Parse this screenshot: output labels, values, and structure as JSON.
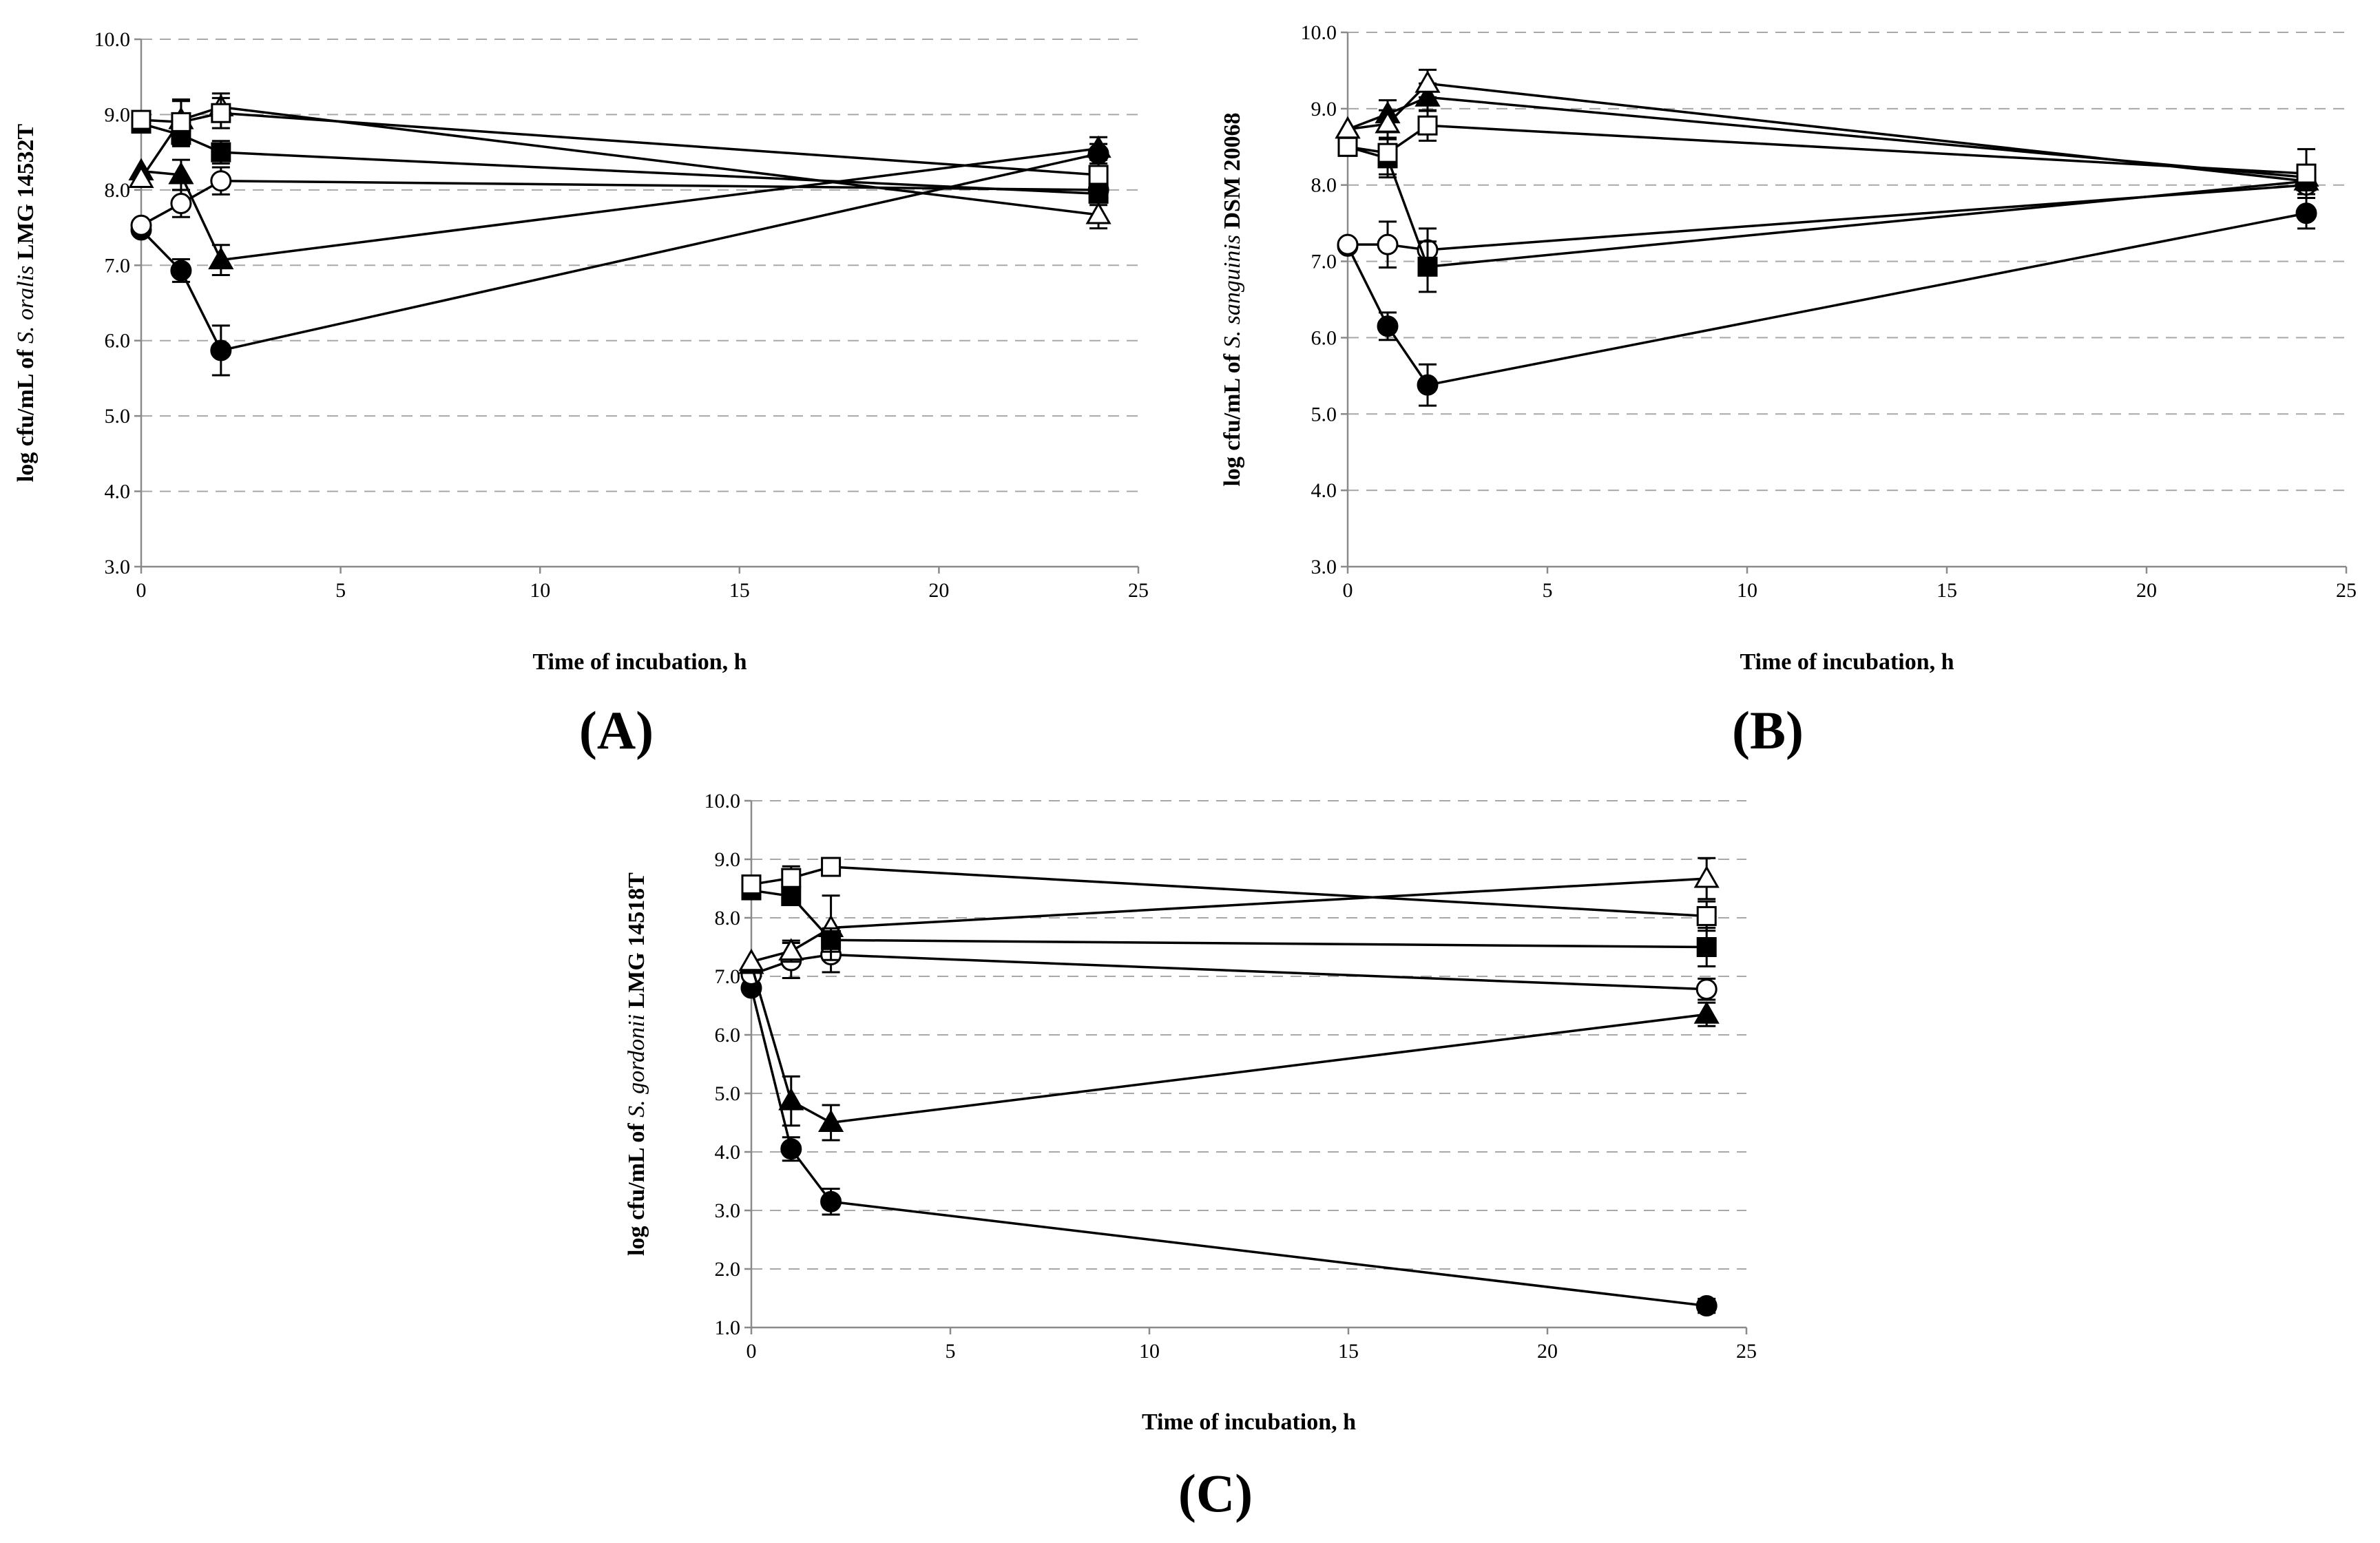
{
  "chart_data": [
    {
      "type": "line",
      "panel": "(A)",
      "ylabel_parts": [
        "log cfu/mL of ",
        "S. oralis",
        " LMG 14532T"
      ],
      "xlabel": "Time of incubation, h",
      "xlim": [
        0,
        25
      ],
      "ylim": [
        3,
        10
      ],
      "x_ticks": [
        "0",
        "5",
        "10",
        "15",
        "20",
        "25"
      ],
      "y_ticks": [
        "3.0",
        "4.0",
        "5.0",
        "6.0",
        "7.0",
        "8.0",
        "9.0",
        "10.0"
      ],
      "grid": true,
      "x": [
        0,
        1,
        2,
        24
      ],
      "series": [
        {
          "marker": "circle-filled",
          "values": [
            7.47,
            6.93,
            5.87,
            8.48
          ],
          "errors": [
            0.05,
            0.15,
            0.33,
            0.13
          ]
        },
        {
          "marker": "circle-open",
          "values": [
            7.53,
            7.82,
            8.12,
            8.0
          ],
          "errors": [
            0.05,
            0.18,
            0.18,
            0.1
          ]
        },
        {
          "marker": "triangle-filled",
          "values": [
            8.25,
            8.2,
            7.07,
            8.55
          ],
          "errors": [
            0.05,
            0.2,
            0.2,
            0.15
          ]
        },
        {
          "marker": "triangle-open",
          "values": [
            8.15,
            8.93,
            9.1,
            7.67
          ],
          "errors": [
            0.05,
            0.25,
            0.18,
            0.18
          ]
        },
        {
          "marker": "square-filled",
          "values": [
            8.88,
            8.73,
            8.5,
            7.95
          ],
          "errors": [
            0.05,
            0.15,
            0.15,
            0.15
          ]
        },
        {
          "marker": "square-open",
          "values": [
            8.93,
            8.9,
            9.02,
            8.2
          ],
          "errors": [
            0.05,
            0.3,
            0.2,
            0.15
          ]
        }
      ]
    },
    {
      "type": "line",
      "panel": "(B)",
      "ylabel_parts": [
        "log cfu/mL of ",
        "S. sanguinis",
        " DSM 20068"
      ],
      "xlabel": "Time of incubation, h",
      "xlim": [
        0,
        25
      ],
      "ylim": [
        3,
        10
      ],
      "x_ticks": [
        "0",
        "5",
        "10",
        "15",
        "20",
        "25"
      ],
      "y_ticks": [
        "3.0",
        "4.0",
        "5.0",
        "6.0",
        "7.0",
        "8.0",
        "9.0",
        "10.0"
      ],
      "grid": true,
      "x": [
        0,
        1,
        2,
        24
      ],
      "series": [
        {
          "marker": "circle-filled",
          "values": [
            7.2,
            6.15,
            5.38,
            7.63
          ],
          "errors": [
            0.05,
            0.18,
            0.27,
            0.2
          ]
        },
        {
          "marker": "circle-open",
          "values": [
            7.22,
            7.22,
            7.15,
            8.0
          ],
          "errors": [
            0.05,
            0.3,
            0.28,
            0.12
          ]
        },
        {
          "marker": "triangle-filled",
          "values": [
            8.73,
            8.93,
            9.15,
            8.1
          ],
          "errors": [
            0.05,
            0.18,
            0.18,
            0.12
          ]
        },
        {
          "marker": "triangle-open",
          "values": [
            8.73,
            8.8,
            9.33,
            8.05
          ],
          "errors": [
            0.05,
            0.18,
            0.18,
            0.12
          ]
        },
        {
          "marker": "square-filled",
          "values": [
            8.5,
            8.35,
            6.93,
            8.05
          ],
          "errors": [
            0.05,
            0.25,
            0.33,
            0.12
          ]
        },
        {
          "marker": "square-open",
          "values": [
            8.5,
            8.42,
            8.78,
            8.15
          ],
          "errors": [
            0.05,
            0.28,
            0.2,
            0.32
          ]
        }
      ]
    },
    {
      "type": "line",
      "panel": "(C)",
      "ylabel_parts": [
        "log cfu/mL of ",
        "S. gordonii",
        " LMG 14518T"
      ],
      "xlabel": "Time of incubation, h",
      "xlim": [
        0,
        25
      ],
      "ylim": [
        1,
        10
      ],
      "x_ticks": [
        "0",
        "5",
        "10",
        "15",
        "20",
        "25"
      ],
      "y_ticks": [
        "1.0",
        "2.0",
        "3.0",
        "4.0",
        "5.0",
        "6.0",
        "7.0",
        "8.0",
        "9.0",
        "10.0"
      ],
      "grid": true,
      "x": [
        0,
        1,
        2,
        24
      ],
      "series": [
        {
          "marker": "circle-filled",
          "values": [
            6.8,
            4.05,
            3.15,
            1.37
          ],
          "errors": [
            0.05,
            0.2,
            0.22,
            0.12
          ]
        },
        {
          "marker": "circle-open",
          "values": [
            7.03,
            7.27,
            7.37,
            6.78
          ],
          "errors": [
            0.05,
            0.3,
            0.3,
            0.18
          ]
        },
        {
          "marker": "triangle-filled",
          "values": [
            7.2,
            4.87,
            4.5,
            6.35
          ],
          "errors": [
            0.05,
            0.42,
            0.3,
            0.2
          ]
        },
        {
          "marker": "triangle-open",
          "values": [
            7.25,
            7.43,
            7.83,
            8.67
          ],
          "errors": [
            0.05,
            0.18,
            0.55,
            0.35
          ]
        },
        {
          "marker": "square-filled",
          "values": [
            8.47,
            8.37,
            7.62,
            7.5
          ],
          "errors": [
            0.05,
            0.15,
            0.2,
            0.33
          ]
        },
        {
          "marker": "square-open",
          "values": [
            8.57,
            8.68,
            8.87,
            8.03
          ],
          "errors": [
            0.05,
            0.2,
            0.12,
            0.25
          ]
        }
      ]
    }
  ]
}
